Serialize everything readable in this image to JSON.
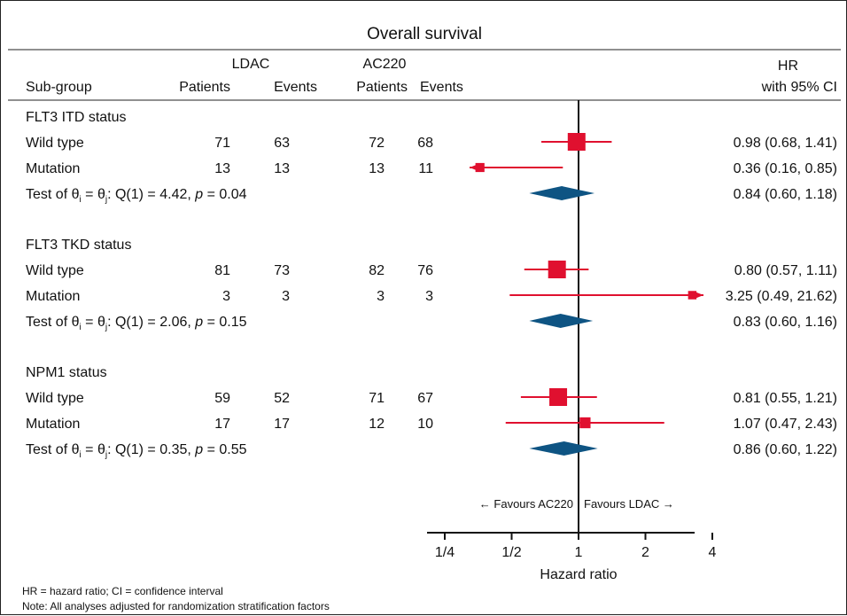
{
  "chart_data": {
    "type": "forest",
    "title": "Overall survival",
    "arm_headers": {
      "arm1": "LDAC",
      "arm2": "AC220"
    },
    "column_headers": {
      "subgroup": "Sub-group",
      "patients1": "Patients",
      "events1": "Events",
      "patients2": "Patients",
      "events2": "Events",
      "hr1": "HR",
      "hr2": "with 95% CI"
    },
    "groups": [
      {
        "name": "FLT3 ITD status",
        "rows": [
          {
            "label": "Wild type",
            "patients1": "71",
            "events1": "63",
            "patients2": "72",
            "events2": "68",
            "hr": 0.98,
            "lo": 0.68,
            "hi": 1.41,
            "text": "0.98 (0.68, 1.41)",
            "weight": 1.0
          },
          {
            "label": "Mutation",
            "patients1": "13",
            "events1": "13",
            "patients2": "13",
            "events2": "11",
            "hr": 0.36,
            "lo": 0.16,
            "hi": 0.85,
            "text": "0.36 (0.16, 0.85)",
            "weight": 0.3
          }
        ],
        "test": {
          "pre": "Test of θ",
          "sub1": "i",
          "mid": " = θ",
          "sub2": "j",
          "post": ": Q(1) = 4.42, ",
          "p": "p",
          "pval": " = 0.04"
        },
        "pooled": {
          "hr": 0.84,
          "lo": 0.6,
          "hi": 1.18,
          "text": "0.84 (0.60, 1.18)"
        }
      },
      {
        "name": "FLT3 TKD status",
        "rows": [
          {
            "label": "Wild type",
            "patients1": "81",
            "events1": "73",
            "patients2": "82",
            "events2": "76",
            "hr": 0.8,
            "lo": 0.57,
            "hi": 1.11,
            "text": "0.80 (0.57, 1.11)",
            "weight": 1.0
          },
          {
            "label": "Mutation",
            "patients1": "3",
            "events1": "3",
            "patients2": "3",
            "events2": "3",
            "hr": 3.25,
            "lo": 0.49,
            "hi": 21.62,
            "text": "3.25 (0.49, 21.62)",
            "weight": 0.25
          }
        ],
        "test": {
          "pre": "Test of θ",
          "sub1": "i",
          "mid": " = θ",
          "sub2": "j",
          "post": ": Q(1) = 2.06, ",
          "p": "p",
          "pval": " = 0.15"
        },
        "pooled": {
          "hr": 0.83,
          "lo": 0.6,
          "hi": 1.16,
          "text": "0.83 (0.60, 1.16)"
        }
      },
      {
        "name": "NPM1 status",
        "rows": [
          {
            "label": "Wild type",
            "patients1": "59",
            "events1": "52",
            "patients2": "71",
            "events2": "67",
            "hr": 0.81,
            "lo": 0.55,
            "hi": 1.21,
            "text": "0.81 (0.55, 1.21)",
            "weight": 1.0
          },
          {
            "label": "Mutation",
            "patients1": "17",
            "events1": "17",
            "patients2": "12",
            "events2": "10",
            "hr": 1.07,
            "lo": 0.47,
            "hi": 2.43,
            "text": "1.07 (0.47, 2.43)",
            "weight": 0.45
          }
        ],
        "test": {
          "pre": "Test of θ",
          "sub1": "i",
          "mid": " = θ",
          "sub2": "j",
          "post": ": Q(1) = 0.35, ",
          "p": "p",
          "pval": " = 0.55"
        },
        "pooled": {
          "hr": 0.86,
          "lo": 0.6,
          "hi": 1.22,
          "text": "0.86 (0.60, 1.22)"
        }
      }
    ],
    "x_scale": "log",
    "xlim": [
      0.25,
      4
    ],
    "x_ticks": [
      0.25,
      0.5,
      1,
      2,
      4
    ],
    "x_tick_labels": [
      "1/4",
      "1/2",
      "1",
      "2",
      "4"
    ],
    "xlabel": "Hazard ratio",
    "reference_line": 1,
    "favours_left": "← Favours AC220",
    "favours_right": "Favours LDAC →",
    "footnotes": [
      "HR = hazard ratio; CI = confidence interval",
      "Note: All analyses adjusted for randomization stratification factors"
    ],
    "colors": {
      "estimate": "#e0102f",
      "pooled": "#0e5483",
      "axis": "#111111"
    }
  }
}
